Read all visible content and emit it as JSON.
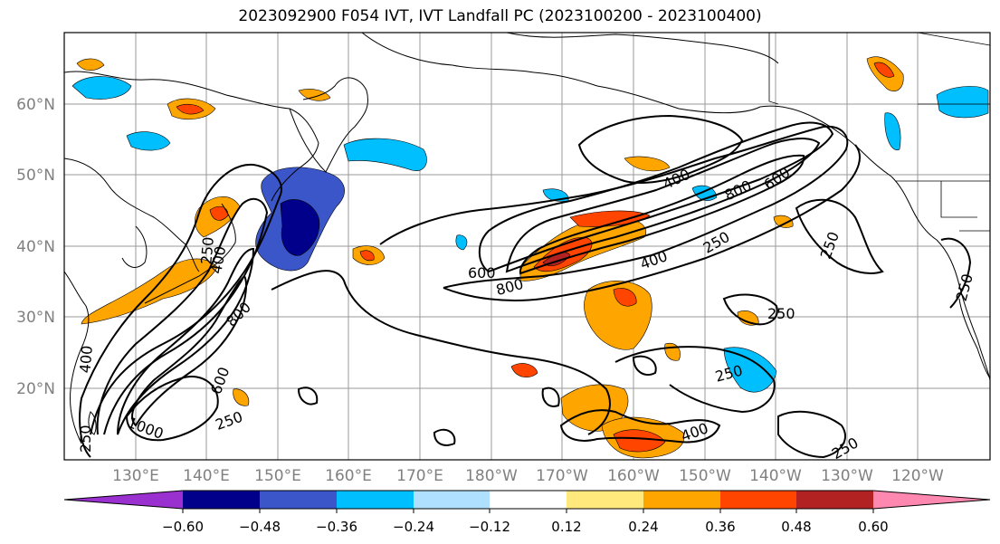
{
  "title": "2023092900 F054 IVT, IVT Landfall PC (2023100200 - 2023100400)",
  "map": {
    "lat_labels": [
      "60°N",
      "50°N",
      "40°N",
      "30°N",
      "20°N"
    ],
    "lon_labels": [
      "130°E",
      "140°E",
      "150°E",
      "160°E",
      "170°E",
      "180°W",
      "170°W",
      "160°W",
      "150°W",
      "140°W",
      "130°W",
      "120°W"
    ],
    "contour_labels": [
      "400",
      "800",
      "600",
      "250",
      "250",
      "600",
      "800",
      "400",
      "250",
      "800",
      "600",
      "250",
      "1000",
      "250",
      "250",
      "400",
      "250",
      "400",
      "250",
      "250",
      "400"
    ],
    "grid": true
  },
  "colorbar": {
    "ticks": [
      "−0.60",
      "−0.48",
      "−0.36",
      "−0.24",
      "−0.12",
      "0.12",
      "0.24",
      "0.36",
      "0.48",
      "0.60"
    ],
    "colors": [
      "#9b30d0",
      "#00008b",
      "#3a56c8",
      "#00bfff",
      "#b0e0ff",
      "#ffffff",
      "#ffe87c",
      "#ffa500",
      "#ff4500",
      "#b22222",
      "#ff88b0"
    ]
  }
}
